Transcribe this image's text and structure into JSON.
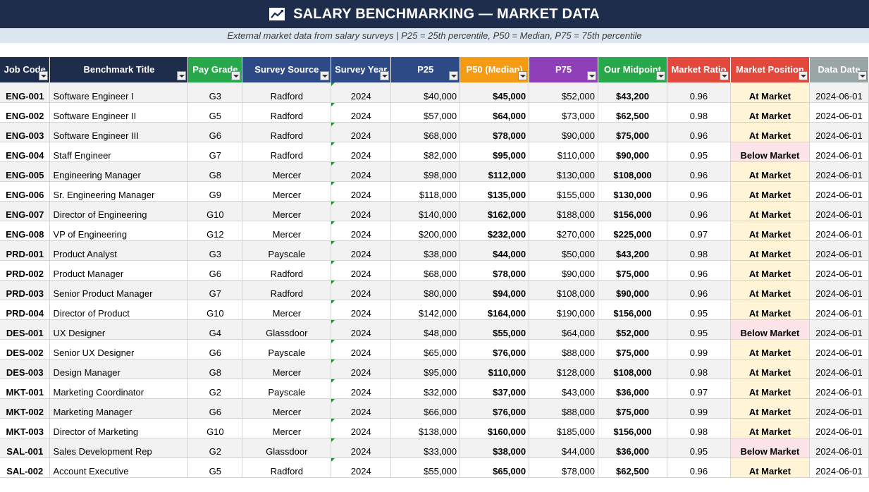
{
  "header": {
    "title": "SALARY BENCHMARKING — MARKET DATA",
    "icon": "line-chart-icon",
    "subtitle": "External market data from salary surveys  |  P25 = 25th percentile, P50 = Median, P75 = 75th percentile"
  },
  "columns": [
    {
      "key": "code",
      "label": "Job Code",
      "color": "#1f2d4d"
    },
    {
      "key": "title",
      "label": "Benchmark Title",
      "color": "#1f2d4d"
    },
    {
      "key": "grade",
      "label": "Pay Grade",
      "color": "#27a84a"
    },
    {
      "key": "source",
      "label": "Survey Source",
      "color": "#2e4a86"
    },
    {
      "key": "year",
      "label": "Survey Year",
      "color": "#2e4a86"
    },
    {
      "key": "p25",
      "label": "P25",
      "color": "#2e4a86"
    },
    {
      "key": "p50",
      "label": "P50 (Median)",
      "color": "#f59a13"
    },
    {
      "key": "p75",
      "label": "P75",
      "color": "#8e3fb8"
    },
    {
      "key": "mid",
      "label": "Our Midpoint",
      "color": "#27a84a"
    },
    {
      "key": "ratio",
      "label": "Market Ratio",
      "color": "#e2483c"
    },
    {
      "key": "position",
      "label": "Market Position",
      "color": "#e2483c"
    },
    {
      "key": "date",
      "label": "Data Date",
      "color": "#9aa5a6"
    }
  ],
  "rows": [
    {
      "code": "ENG-001",
      "title": "Software Engineer I",
      "grade": "G3",
      "source": "Radford",
      "year": "2024",
      "p25": "$40,000",
      "p50": "$45,000",
      "p75": "$52,000",
      "mid": "$43,200",
      "ratio": "0.96",
      "position": "At Market",
      "date": "2024-06-01"
    },
    {
      "code": "ENG-002",
      "title": "Software Engineer II",
      "grade": "G5",
      "source": "Radford",
      "year": "2024",
      "p25": "$57,000",
      "p50": "$64,000",
      "p75": "$73,000",
      "mid": "$62,500",
      "ratio": "0.98",
      "position": "At Market",
      "date": "2024-06-01"
    },
    {
      "code": "ENG-003",
      "title": "Software Engineer III",
      "grade": "G6",
      "source": "Radford",
      "year": "2024",
      "p25": "$68,000",
      "p50": "$78,000",
      "p75": "$90,000",
      "mid": "$75,000",
      "ratio": "0.96",
      "position": "At Market",
      "date": "2024-06-01"
    },
    {
      "code": "ENG-004",
      "title": "Staff Engineer",
      "grade": "G7",
      "source": "Radford",
      "year": "2024",
      "p25": "$82,000",
      "p50": "$95,000",
      "p75": "$110,000",
      "mid": "$90,000",
      "ratio": "0.95",
      "position": "Below Market",
      "date": "2024-06-01"
    },
    {
      "code": "ENG-005",
      "title": "Engineering Manager",
      "grade": "G8",
      "source": "Mercer",
      "year": "2024",
      "p25": "$98,000",
      "p50": "$112,000",
      "p75": "$130,000",
      "mid": "$108,000",
      "ratio": "0.96",
      "position": "At Market",
      "date": "2024-06-01"
    },
    {
      "code": "ENG-006",
      "title": "Sr. Engineering Manager",
      "grade": "G9",
      "source": "Mercer",
      "year": "2024",
      "p25": "$118,000",
      "p50": "$135,000",
      "p75": "$155,000",
      "mid": "$130,000",
      "ratio": "0.96",
      "position": "At Market",
      "date": "2024-06-01"
    },
    {
      "code": "ENG-007",
      "title": "Director of Engineering",
      "grade": "G10",
      "source": "Mercer",
      "year": "2024",
      "p25": "$140,000",
      "p50": "$162,000",
      "p75": "$188,000",
      "mid": "$156,000",
      "ratio": "0.96",
      "position": "At Market",
      "date": "2024-06-01"
    },
    {
      "code": "ENG-008",
      "title": "VP of Engineering",
      "grade": "G12",
      "source": "Mercer",
      "year": "2024",
      "p25": "$200,000",
      "p50": "$232,000",
      "p75": "$270,000",
      "mid": "$225,000",
      "ratio": "0.97",
      "position": "At Market",
      "date": "2024-06-01"
    },
    {
      "code": "PRD-001",
      "title": "Product Analyst",
      "grade": "G3",
      "source": "Payscale",
      "year": "2024",
      "p25": "$38,000",
      "p50": "$44,000",
      "p75": "$50,000",
      "mid": "$43,200",
      "ratio": "0.98",
      "position": "At Market",
      "date": "2024-06-01"
    },
    {
      "code": "PRD-002",
      "title": "Product Manager",
      "grade": "G6",
      "source": "Radford",
      "year": "2024",
      "p25": "$68,000",
      "p50": "$78,000",
      "p75": "$90,000",
      "mid": "$75,000",
      "ratio": "0.96",
      "position": "At Market",
      "date": "2024-06-01"
    },
    {
      "code": "PRD-003",
      "title": "Senior Product Manager",
      "grade": "G7",
      "source": "Radford",
      "year": "2024",
      "p25": "$80,000",
      "p50": "$94,000",
      "p75": "$108,000",
      "mid": "$90,000",
      "ratio": "0.96",
      "position": "At Market",
      "date": "2024-06-01"
    },
    {
      "code": "PRD-004",
      "title": "Director of Product",
      "grade": "G10",
      "source": "Mercer",
      "year": "2024",
      "p25": "$142,000",
      "p50": "$164,000",
      "p75": "$190,000",
      "mid": "$156,000",
      "ratio": "0.95",
      "position": "At Market",
      "date": "2024-06-01"
    },
    {
      "code": "DES-001",
      "title": "UX Designer",
      "grade": "G4",
      "source": "Glassdoor",
      "year": "2024",
      "p25": "$48,000",
      "p50": "$55,000",
      "p75": "$64,000",
      "mid": "$52,000",
      "ratio": "0.95",
      "position": "Below Market",
      "date": "2024-06-01"
    },
    {
      "code": "DES-002",
      "title": "Senior UX Designer",
      "grade": "G6",
      "source": "Payscale",
      "year": "2024",
      "p25": "$65,000",
      "p50": "$76,000",
      "p75": "$88,000",
      "mid": "$75,000",
      "ratio": "0.99",
      "position": "At Market",
      "date": "2024-06-01"
    },
    {
      "code": "DES-003",
      "title": "Design Manager",
      "grade": "G8",
      "source": "Mercer",
      "year": "2024",
      "p25": "$95,000",
      "p50": "$110,000",
      "p75": "$128,000",
      "mid": "$108,000",
      "ratio": "0.98",
      "position": "At Market",
      "date": "2024-06-01"
    },
    {
      "code": "MKT-001",
      "title": "Marketing Coordinator",
      "grade": "G2",
      "source": "Payscale",
      "year": "2024",
      "p25": "$32,000",
      "p50": "$37,000",
      "p75": "$43,000",
      "mid": "$36,000",
      "ratio": "0.97",
      "position": "At Market",
      "date": "2024-06-01"
    },
    {
      "code": "MKT-002",
      "title": "Marketing Manager",
      "grade": "G6",
      "source": "Mercer",
      "year": "2024",
      "p25": "$66,000",
      "p50": "$76,000",
      "p75": "$88,000",
      "mid": "$75,000",
      "ratio": "0.99",
      "position": "At Market",
      "date": "2024-06-01"
    },
    {
      "code": "MKT-003",
      "title": "Director of Marketing",
      "grade": "G10",
      "source": "Mercer",
      "year": "2024",
      "p25": "$138,000",
      "p50": "$160,000",
      "p75": "$185,000",
      "mid": "$156,000",
      "ratio": "0.98",
      "position": "At Market",
      "date": "2024-06-01"
    },
    {
      "code": "SAL-001",
      "title": "Sales Development Rep",
      "grade": "G2",
      "source": "Glassdoor",
      "year": "2024",
      "p25": "$33,000",
      "p50": "$38,000",
      "p75": "$44,000",
      "mid": "$36,000",
      "ratio": "0.95",
      "position": "Below Market",
      "date": "2024-06-01"
    },
    {
      "code": "SAL-002",
      "title": "Account Executive",
      "grade": "G5",
      "source": "Radford",
      "year": "2024",
      "p25": "$55,000",
      "p50": "$65,000",
      "p75": "$78,000",
      "mid": "$62,500",
      "ratio": "0.96",
      "position": "At Market",
      "date": "2024-06-01"
    }
  ]
}
